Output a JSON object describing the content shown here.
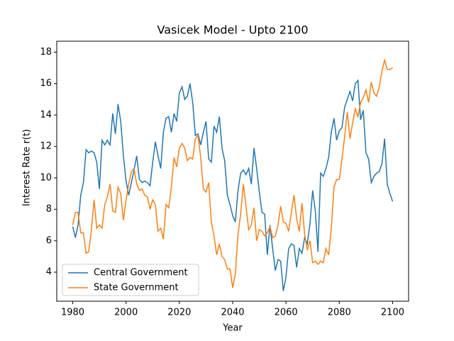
{
  "chart_data": {
    "type": "line",
    "title": "Vasicek Model - Upto 2100",
    "x_label": "Year",
    "y_label": "Interest Rate r(t)",
    "x": [
      1980,
      1981,
      1982,
      1983,
      1984,
      1985,
      1986,
      1987,
      1988,
      1989,
      1990,
      1991,
      1992,
      1993,
      1994,
      1995,
      1996,
      1997,
      1998,
      1999,
      2000,
      2001,
      2002,
      2003,
      2004,
      2005,
      2006,
      2007,
      2008,
      2009,
      2010,
      2011,
      2012,
      2013,
      2014,
      2015,
      2016,
      2017,
      2018,
      2019,
      2020,
      2021,
      2022,
      2023,
      2024,
      2025,
      2026,
      2027,
      2028,
      2029,
      2030,
      2031,
      2032,
      2033,
      2034,
      2035,
      2036,
      2037,
      2038,
      2039,
      2040,
      2041,
      2042,
      2043,
      2044,
      2045,
      2046,
      2047,
      2048,
      2049,
      2050,
      2051,
      2052,
      2053,
      2054,
      2055,
      2056,
      2057,
      2058,
      2059,
      2060,
      2061,
      2062,
      2063,
      2064,
      2065,
      2066,
      2067,
      2068,
      2069,
      2070,
      2071,
      2072,
      2073,
      2074,
      2075,
      2076,
      2077,
      2078,
      2079,
      2080,
      2081,
      2082,
      2083,
      2084,
      2085,
      2086,
      2087,
      2088,
      2089,
      2090,
      2091,
      2092,
      2093,
      2094,
      2095,
      2096,
      2097,
      2098,
      2099,
      2100
    ],
    "series": [
      {
        "name": "Central Government",
        "color": "#1f77b4",
        "values": [
          6.9,
          6.2,
          7.0,
          8.9,
          9.7,
          11.8,
          11.6,
          11.7,
          11.6,
          11.0,
          9.3,
          12.4,
          12.1,
          12.4,
          12.1,
          14.1,
          12.8,
          14.7,
          13.6,
          11.4,
          9.8,
          8.9,
          9.7,
          10.5,
          11.4,
          9.9,
          9.7,
          9.8,
          9.7,
          9.5,
          11.0,
          12.3,
          11.4,
          10.6,
          12.9,
          13.8,
          13.9,
          12.9,
          14.1,
          13.6,
          15.4,
          15.8,
          15.0,
          15.2,
          16.0,
          14.8,
          12.7,
          12.8,
          12.1,
          12.9,
          13.6,
          11.2,
          11.0,
          13.3,
          12.9,
          13.9,
          11.9,
          11.1,
          8.9,
          8.3,
          7.6,
          7.2,
          9.2,
          10.3,
          10.5,
          10.2,
          10.6,
          9.6,
          11.9,
          10.6,
          9.1,
          7.8,
          7.7,
          5.1,
          7.0,
          5.5,
          4.1,
          4.8,
          4.7,
          2.8,
          3.7,
          5.5,
          5.8,
          5.7,
          4.3,
          5.5,
          5.2,
          6.2,
          5.8,
          7.1,
          9.2,
          7.9,
          5.3,
          10.3,
          10.1,
          10.6,
          11.3,
          12.9,
          13.8,
          12.4,
          13.0,
          13.2,
          14.5,
          15.0,
          15.5,
          14.9,
          16.0,
          16.2,
          13.7,
          14.3,
          11.6,
          11.2,
          9.7,
          10.1,
          10.3,
          10.4,
          10.9,
          12.5,
          9.6,
          9.0,
          8.5
        ]
      },
      {
        "name": "State Government",
        "color": "#ff7f0e",
        "values": [
          7.0,
          7.8,
          7.8,
          6.5,
          6.5,
          5.2,
          5.3,
          6.7,
          8.6,
          6.8,
          7.0,
          6.8,
          8.3,
          8.8,
          9.6,
          7.9,
          7.8,
          9.4,
          9.0,
          7.3,
          8.6,
          9.6,
          10.4,
          10.6,
          9.6,
          9.2,
          9.3,
          8.9,
          8.8,
          8.0,
          8.6,
          8.3,
          6.6,
          6.8,
          6.1,
          8.3,
          8.1,
          9.4,
          11.3,
          10.7,
          11.9,
          12.2,
          11.9,
          11.1,
          11.3,
          11.2,
          12.5,
          12.7,
          11.3,
          9.3,
          9.1,
          9.7,
          7.2,
          6.3,
          5.1,
          5.8,
          5.0,
          4.8,
          4.2,
          4.2,
          3.0,
          3.9,
          6.4,
          7.7,
          9.6,
          8.2,
          6.7,
          7.0,
          8.1,
          6.0,
          6.7,
          6.6,
          6.3,
          6.5,
          6.9,
          6.2,
          6.3,
          7.0,
          8.2,
          7.2,
          7.1,
          6.6,
          7.8,
          8.9,
          7.4,
          6.6,
          8.4,
          6.4,
          5.4,
          6.0,
          4.6,
          4.7,
          4.5,
          4.7,
          4.6,
          5.5,
          5.1,
          6.8,
          9.4,
          9.9,
          9.9,
          11.2,
          12.6,
          14.2,
          12.5,
          13.5,
          14.4,
          13.9,
          14.8,
          15.1,
          15.6,
          14.8,
          16.1,
          15.4,
          15.2,
          15.8,
          16.8,
          17.5,
          16.9,
          16.9,
          17.0
        ]
      }
    ],
    "xlim": [
      1974,
      2106
    ],
    "ylim": [
      2.15,
      18.7
    ],
    "xticks": [
      1980,
      2000,
      2020,
      2040,
      2060,
      2080,
      2100
    ],
    "yticks": [
      4,
      6,
      8,
      10,
      12,
      14,
      16,
      18
    ],
    "legend": "lower left",
    "grid": false
  }
}
